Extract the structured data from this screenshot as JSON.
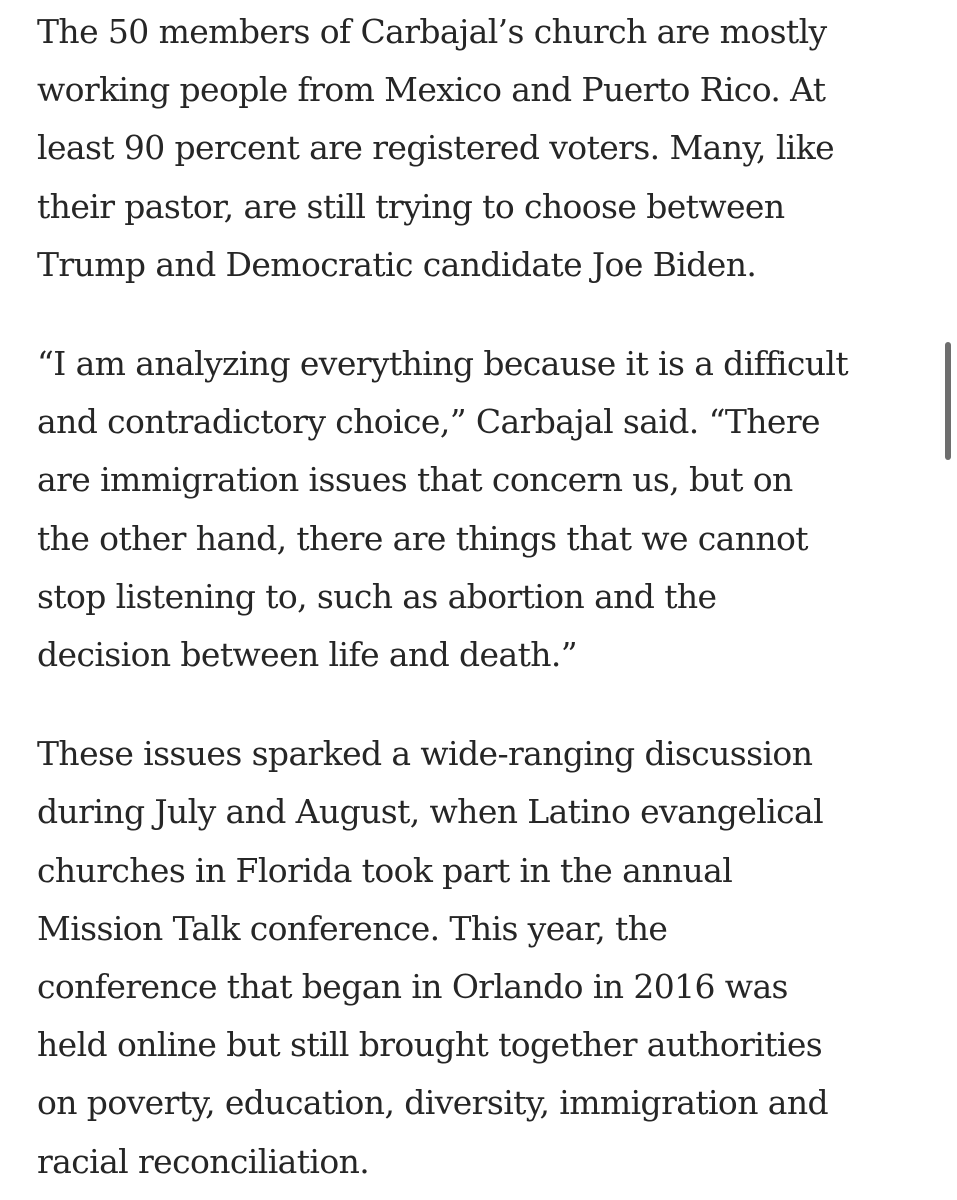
{
  "article": {
    "paragraphs": [
      {
        "lines": [
          "The 50 members of Carbajal’s church are mostly",
          "working people from Mexico and Puerto Rico. At",
          "least 90 percent are registered voters. Many, like",
          "their pastor, are still trying to choose between",
          "Trump and Democratic candidate Joe Biden."
        ]
      },
      {
        "lines": [
          "“I am analyzing everything because it is a difficult",
          "and contradictory choice,” Carbajal said. “There",
          "are immigration issues that concern us, but on",
          "the other hand, there are things that we cannot",
          "stop listening to, such as abortion and the",
          "decision between life and death.”"
        ]
      },
      {
        "lines": [
          "These issues sparked a wide-ranging discussion",
          "during July and August, when Latino evangelical",
          "churches in Florida took part in the annual",
          "Mission Talk conference. This year, the",
          "conference that began in Orlando in 2016 was",
          "held online but still brought together authorities",
          "on poverty, education, diversity, immigration and",
          "racial reconciliation."
        ]
      }
    ]
  },
  "scrollbar": {
    "thumb_color": "#6e6e6e"
  }
}
